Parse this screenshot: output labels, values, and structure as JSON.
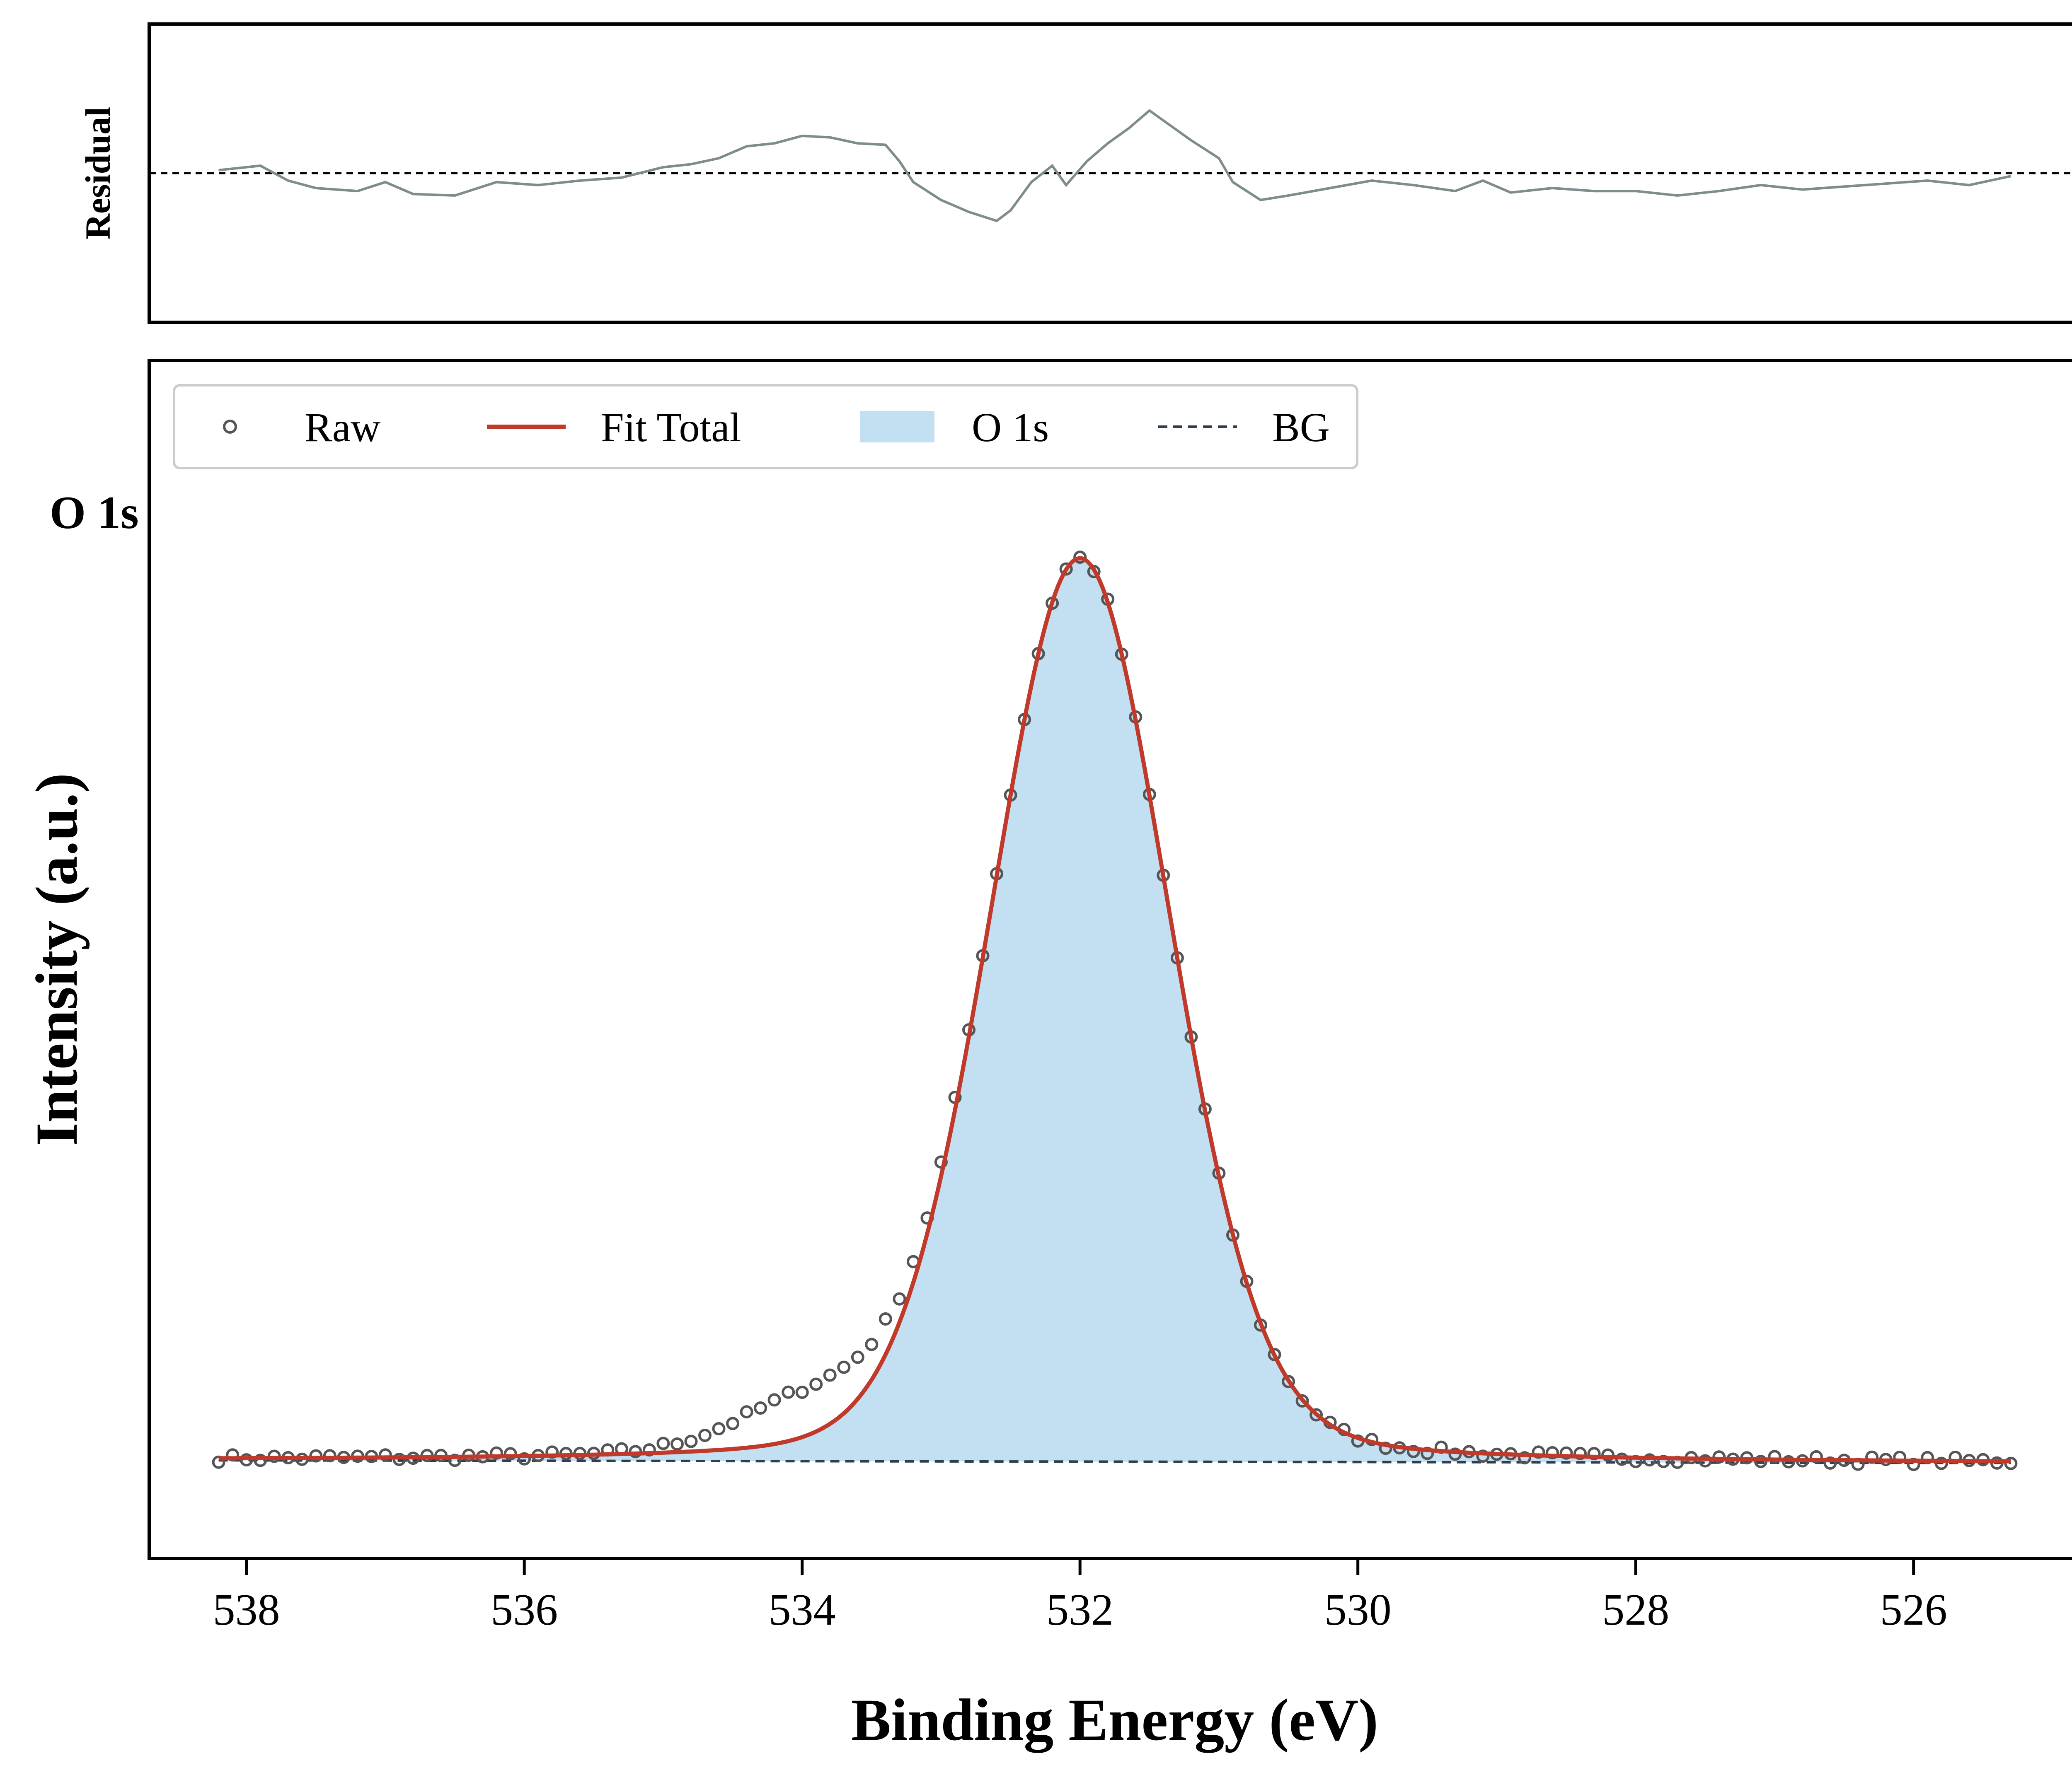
{
  "chart_data": [
    {
      "type": "line",
      "panel": "residual",
      "ylabel": "Residual",
      "xlim": [
        538.7,
        524.8
      ],
      "ylim": [
        -1.0,
        1.0
      ],
      "zero_line": 0,
      "colors": {
        "residual": "#7f8c8d",
        "zero": "#000000"
      },
      "residual_points": [
        [
          538.2,
          0.02
        ],
        [
          537.9,
          0.05
        ],
        [
          537.7,
          -0.05
        ],
        [
          537.5,
          -0.1
        ],
        [
          537.2,
          -0.12
        ],
        [
          537.0,
          -0.06
        ],
        [
          536.8,
          -0.14
        ],
        [
          536.5,
          -0.15
        ],
        [
          536.2,
          -0.06
        ],
        [
          535.9,
          -0.08
        ],
        [
          535.6,
          -0.05
        ],
        [
          535.3,
          -0.03
        ],
        [
          535.0,
          0.04
        ],
        [
          534.8,
          0.06
        ],
        [
          534.6,
          0.1
        ],
        [
          534.4,
          0.18
        ],
        [
          534.2,
          0.2
        ],
        [
          534.0,
          0.25
        ],
        [
          533.8,
          0.24
        ],
        [
          533.6,
          0.2
        ],
        [
          533.4,
          0.19
        ],
        [
          533.3,
          0.08
        ],
        [
          533.2,
          -0.06
        ],
        [
          533.0,
          -0.18
        ],
        [
          532.8,
          -0.26
        ],
        [
          532.6,
          -0.32
        ],
        [
          532.5,
          -0.25
        ],
        [
          532.35,
          -0.06
        ],
        [
          532.2,
          0.05
        ],
        [
          532.1,
          -0.08
        ],
        [
          531.95,
          0.08
        ],
        [
          531.8,
          0.2
        ],
        [
          531.65,
          0.3
        ],
        [
          531.5,
          0.42
        ],
        [
          531.35,
          0.32
        ],
        [
          531.2,
          0.22
        ],
        [
          531.0,
          0.1
        ],
        [
          530.9,
          -0.06
        ],
        [
          530.7,
          -0.18
        ],
        [
          530.5,
          -0.15
        ],
        [
          530.2,
          -0.1
        ],
        [
          529.9,
          -0.05
        ],
        [
          529.6,
          -0.08
        ],
        [
          529.3,
          -0.12
        ],
        [
          529.1,
          -0.05
        ],
        [
          528.9,
          -0.13
        ],
        [
          528.6,
          -0.1
        ],
        [
          528.3,
          -0.12
        ],
        [
          528.0,
          -0.12
        ],
        [
          527.7,
          -0.15
        ],
        [
          527.4,
          -0.12
        ],
        [
          527.1,
          -0.08
        ],
        [
          526.8,
          -0.11
        ],
        [
          526.5,
          -0.09
        ],
        [
          526.2,
          -0.07
        ],
        [
          525.9,
          -0.05
        ],
        [
          525.6,
          -0.08
        ],
        [
          525.3,
          -0.02
        ]
      ]
    },
    {
      "type": "line",
      "panel": "main",
      "xlabel": "Binding Energy (eV)",
      "ylabel": "Intensity (a.u.)",
      "annotation": "O 1s",
      "xlim": [
        538.7,
        524.8
      ],
      "ylim": [
        -0.1,
        1.12
      ],
      "x_ticks": [
        538,
        536,
        534,
        532,
        530,
        528,
        526
      ],
      "grid": false,
      "legend": {
        "placement": "top-left",
        "entries": [
          "Raw",
          "Fit Total",
          "O 1s",
          "BG"
        ]
      },
      "colors": {
        "raw": "#555555",
        "fit": "#c0392b",
        "fill": "#c3dff2",
        "bg": "#2c3e50"
      },
      "raw_x_range": [
        538.2,
        525.3
      ],
      "raw_step": 0.1,
      "peak": {
        "center": 532.0,
        "sigma": 0.65,
        "lorentz_fraction": 0.15,
        "height": 0.92
      },
      "shoulder": {
        "center": 533.9,
        "sigma": 0.55,
        "height": 0.05
      },
      "background": {
        "start": 0.0,
        "end": -0.003
      },
      "series": [
        {
          "name": "Raw",
          "style": "open-circle"
        },
        {
          "name": "Fit Total",
          "style": "solid"
        },
        {
          "name": "O 1s",
          "style": "filled-area"
        },
        {
          "name": "BG",
          "style": "dashed"
        }
      ]
    }
  ]
}
